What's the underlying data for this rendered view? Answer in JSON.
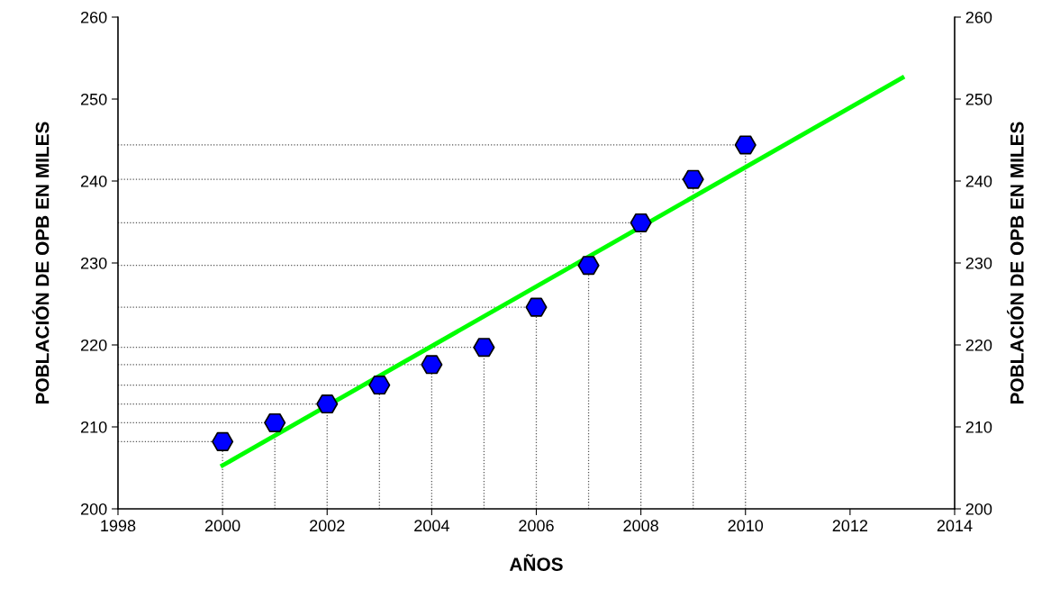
{
  "chart_data": {
    "type": "scatter",
    "xlabel": "AÑOS",
    "ylabel": "POBLACIÓN DE OPB EN MILES",
    "y2label": "POBLACIÓN DE OPB EN MILES",
    "x": [
      2000,
      2001,
      2002,
      2003,
      2004,
      2005,
      2006,
      2007,
      2008,
      2009,
      2010
    ],
    "series": [
      {
        "color": "#0000ff",
        "values": [
          208.2,
          210.5,
          212.8,
          215.1,
          217.6,
          219.7,
          224.6,
          229.7,
          234.9,
          240.2,
          244.4
        ]
      },
      {
        "type": "line",
        "color": "#00ff00",
        "marker": "none",
        "line_style": "solid",
        "x": [
          2000,
          2013
        ],
        "values": [
          205.3,
          252.6
        ]
      }
    ],
    "ref_lines": [
      {
        "axis": "x",
        "value": 2000,
        "color": "#555555",
        "line_style": "dotted"
      },
      {
        "axis": "x",
        "value": 2001,
        "color": "#555555",
        "line_style": "dotted"
      },
      {
        "axis": "x",
        "value": 2002,
        "color": "#555555",
        "line_style": "dotted"
      },
      {
        "axis": "x",
        "value": 2003,
        "color": "#555555",
        "line_style": "dotted"
      },
      {
        "axis": "x",
        "value": 2004,
        "color": "#555555",
        "line_style": "dotted"
      },
      {
        "axis": "x",
        "value": 2005,
        "color": "#555555",
        "line_style": "dotted"
      },
      {
        "axis": "x",
        "value": 2006,
        "color": "#555555",
        "line_style": "dotted"
      },
      {
        "axis": "x",
        "value": 2007,
        "color": "#555555",
        "line_style": "dotted"
      },
      {
        "axis": "x",
        "value": 2008,
        "color": "#555555",
        "line_style": "dotted"
      },
      {
        "axis": "x",
        "value": 2009,
        "color": "#555555",
        "line_style": "dotted"
      },
      {
        "axis": "x",
        "value": 2010,
        "color": "#555555",
        "line_style": "dotted"
      },
      {
        "axis": "y",
        "value": 208.2,
        "color": "#555555",
        "line_style": "dotted"
      },
      {
        "axis": "y",
        "value": 210.5,
        "color": "#555555",
        "line_style": "dotted"
      },
      {
        "axis": "y",
        "value": 212.8,
        "color": "#555555",
        "line_style": "dotted"
      },
      {
        "axis": "y",
        "value": 215.1,
        "color": "#555555",
        "line_style": "dotted"
      },
      {
        "axis": "y",
        "value": 217.6,
        "color": "#555555",
        "line_style": "dotted"
      },
      {
        "axis": "y",
        "value": 219.7,
        "color": "#555555",
        "line_style": "dotted"
      },
      {
        "axis": "y",
        "value": 224.6,
        "color": "#555555",
        "line_style": "dotted"
      },
      {
        "axis": "y",
        "value": 229.7,
        "color": "#555555",
        "line_style": "dotted"
      },
      {
        "axis": "y",
        "value": 234.9,
        "color": "#555555",
        "line_style": "dotted"
      },
      {
        "axis": "y",
        "value": 240.2,
        "color": "#555555",
        "line_style": "dotted"
      },
      {
        "axis": "y",
        "value": 244.4,
        "color": "#555555",
        "line_style": "dotted"
      }
    ],
    "xlim": [
      1998,
      2014
    ],
    "xticks": [
      1998,
      2000,
      2002,
      2004,
      2006,
      2008,
      2010,
      2012,
      2014
    ],
    "ylim": [
      200,
      260
    ],
    "yticks": [
      200,
      210,
      220,
      230,
      240,
      250,
      260
    ],
    "y2lim": [
      200,
      260
    ],
    "y2ticks": [
      200,
      210,
      220,
      230,
      240,
      250,
      260
    ],
    "grid": false
  }
}
